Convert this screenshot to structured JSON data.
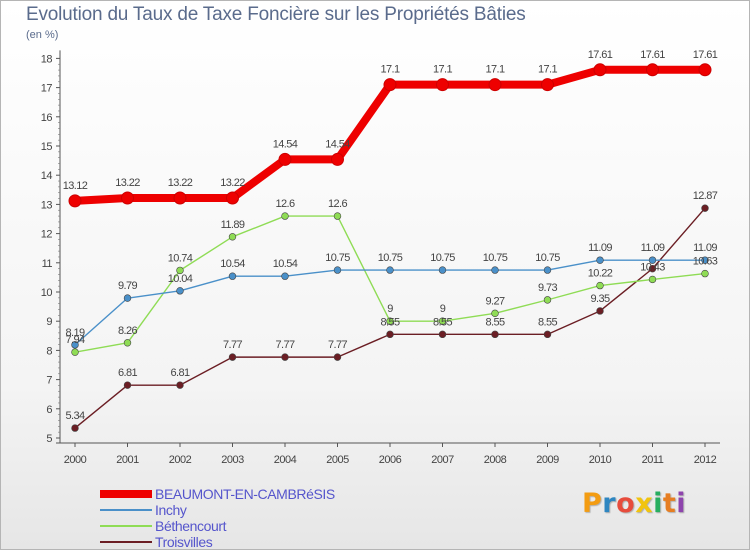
{
  "header": {
    "title": "Evolution du Taux de Taxe Foncière sur les Propriétés Bâties",
    "unit": "(en %)"
  },
  "logo": {
    "letters": [
      "P",
      "r",
      "o",
      "x",
      "i",
      "t",
      "i"
    ],
    "colors": [
      "#f39c12",
      "#2e86c1",
      "#e74c3c",
      "#f1c40f",
      "#27ae60",
      "#e67e22",
      "#8e44ad"
    ]
  },
  "chart_data": {
    "type": "line",
    "title": "Evolution du Taux de Taxe Foncière sur les Propriétés Bâties",
    "ylabel": "(en %)",
    "xlabel": "",
    "x": [
      "2000",
      "2001",
      "2002",
      "2003",
      "2004",
      "2005",
      "2006",
      "2007",
      "2008",
      "2009",
      "2010",
      "2011",
      "2012"
    ],
    "ylim": [
      5,
      18
    ],
    "yticks": [
      5,
      6,
      7,
      8,
      9,
      10,
      11,
      12,
      13,
      14,
      15,
      16,
      17,
      18
    ],
    "grid": false,
    "legend_position": "bottom-left",
    "series": [
      {
        "name": "BEAUMONT-EN-CAMBRéSIS",
        "color": "#ee0000",
        "values": [
          13.12,
          13.22,
          13.22,
          13.22,
          14.54,
          14.54,
          17.1,
          17.1,
          17.1,
          17.1,
          17.61,
          17.61,
          17.61
        ],
        "labels": [
          "13.12",
          "13.22",
          "13.22",
          "13.22",
          "14.54",
          "14.54",
          "17.1",
          "17.1",
          "17.1",
          "17.1",
          "17.61",
          "17.61",
          "17.61"
        ]
      },
      {
        "name": "Inchy",
        "color": "#4a90c9",
        "values": [
          8.19,
          9.79,
          10.04,
          10.54,
          10.54,
          10.75,
          10.75,
          10.75,
          10.75,
          10.75,
          11.09,
          11.09,
          11.09
        ],
        "labels": [
          "8.19",
          "9.79",
          "10.04",
          "10.54",
          "10.54",
          "10.75",
          "10.75",
          "10.75",
          "10.75",
          "10.75",
          "11.09",
          "11.09",
          "11.09"
        ]
      },
      {
        "name": "Béthencourt",
        "color": "#8fdc55",
        "values": [
          7.94,
          8.26,
          10.74,
          11.89,
          12.6,
          12.6,
          9,
          9,
          9.27,
          9.73,
          10.22,
          10.43,
          10.63
        ],
        "labels": [
          "7.94",
          "8.26",
          "10.74",
          "11.89",
          "12.6",
          "12.6",
          "9",
          "9",
          "9.27",
          "9.73",
          "10.22",
          "10.43",
          "10.63"
        ]
      },
      {
        "name": "Troisvilles",
        "color": "#6b1e24",
        "values": [
          5.34,
          6.81,
          6.81,
          7.77,
          7.77,
          7.77,
          8.55,
          8.55,
          8.55,
          8.55,
          9.35,
          10.8,
          12.87
        ],
        "labels": [
          "5.34",
          "6.81",
          "6.81",
          "7.77",
          "7.77",
          "7.77",
          "8.55",
          "8.55",
          "8.55",
          "8.55",
          "9.35",
          "",
          "12.87"
        ]
      }
    ]
  }
}
